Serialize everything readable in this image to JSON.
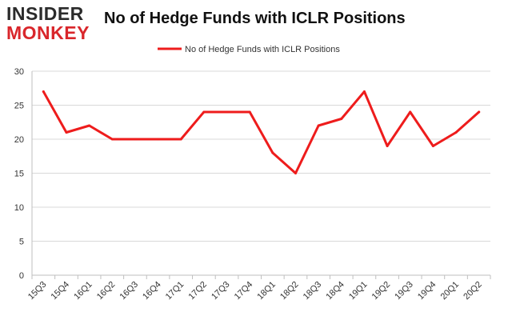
{
  "logo": {
    "top": "INSIDER",
    "bottom": "MONKEY"
  },
  "colors": {
    "line": "#ee1c1c",
    "grid": "#d9d9d9",
    "axis": "#bfbfbf",
    "brand_red": "#d9262b"
  },
  "chart_data": {
    "type": "line",
    "title": "No of Hedge Funds with ICLR Positions",
    "xlabel": "",
    "ylabel": "",
    "ylim": [
      0,
      30
    ],
    "yticks": [
      0,
      5,
      10,
      15,
      20,
      25,
      30
    ],
    "grid": "horizontal",
    "legend_position": "top",
    "categories": [
      "15Q3",
      "15Q4",
      "16Q1",
      "16Q2",
      "16Q3",
      "16Q4",
      "17Q1",
      "17Q2",
      "17Q3",
      "17Q4",
      "18Q1",
      "18Q2",
      "18Q3",
      "18Q4",
      "19Q1",
      "19Q2",
      "19Q3",
      "19Q4",
      "20Q1",
      "20Q2"
    ],
    "series": [
      {
        "name": "No of Hedge Funds with ICLR Positions",
        "values": [
          27,
          21,
          22,
          20,
          20,
          20,
          20,
          24,
          24,
          24,
          18,
          15,
          22,
          23,
          27,
          19,
          24,
          19,
          21,
          24
        ]
      }
    ]
  }
}
